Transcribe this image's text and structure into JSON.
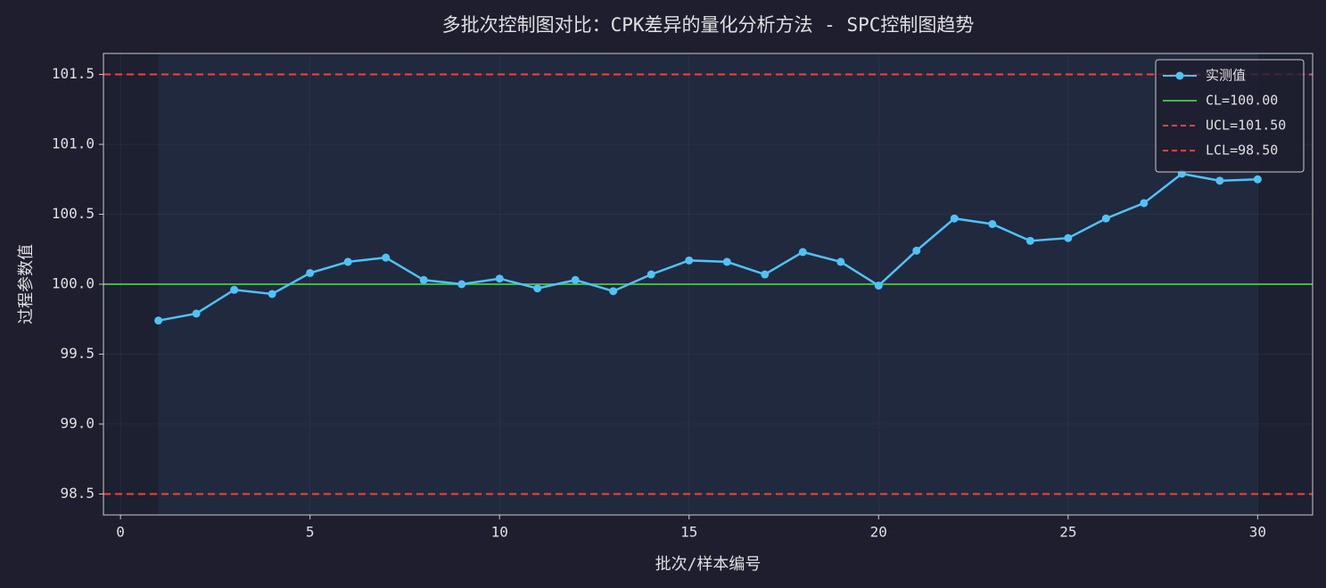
{
  "chart_data": {
    "type": "line",
    "title": "多批次控制图对比：CPK差异的量化分析方法 - SPC控制图趋势",
    "x_label": "批次/样本编号",
    "y_label": "过程参数值",
    "x": [
      1,
      2,
      3,
      4,
      5,
      6,
      7,
      8,
      9,
      10,
      11,
      12,
      13,
      14,
      15,
      16,
      17,
      18,
      19,
      20,
      21,
      22,
      23,
      24,
      25,
      26,
      27,
      28,
      29,
      30
    ],
    "series": [
      {
        "name": "实测值",
        "color": "#4fc3f7",
        "values": [
          99.74,
          99.79,
          99.96,
          99.93,
          100.08,
          100.16,
          100.19,
          100.03,
          100.0,
          100.04,
          99.97,
          100.03,
          99.95,
          100.07,
          100.17,
          100.16,
          100.07,
          100.23,
          100.16,
          99.99,
          100.24,
          100.47,
          100.43,
          100.31,
          100.33,
          100.47,
          100.58,
          100.79,
          100.74,
          100.75
        ]
      }
    ],
    "reference_lines": [
      {
        "name": "CL=100.00",
        "value": 100,
        "color": "#4caf50",
        "dashed": false
      },
      {
        "name": "UCL=101.50",
        "value": 101.5,
        "color": "#f44336",
        "dashed": true
      },
      {
        "name": "LCL=98.50",
        "value": 98.5,
        "color": "#f44336",
        "dashed": true
      }
    ],
    "shaded_span": [
      1,
      30
    ],
    "xlim": [
      -0.45,
      31.45
    ],
    "ylim": [
      98.35,
      101.65
    ],
    "xticks": [
      0,
      5,
      10,
      15,
      20,
      25,
      30
    ],
    "yticks": [
      98.5,
      {
        "value": 99,
        "label": "99.0"
      },
      99.5,
      {
        "value": 100,
        "label": "100.0"
      },
      100.5,
      {
        "value": 101,
        "label": "101.0"
      },
      101.5
    ],
    "grid": true,
    "legend_position": "upper right"
  }
}
